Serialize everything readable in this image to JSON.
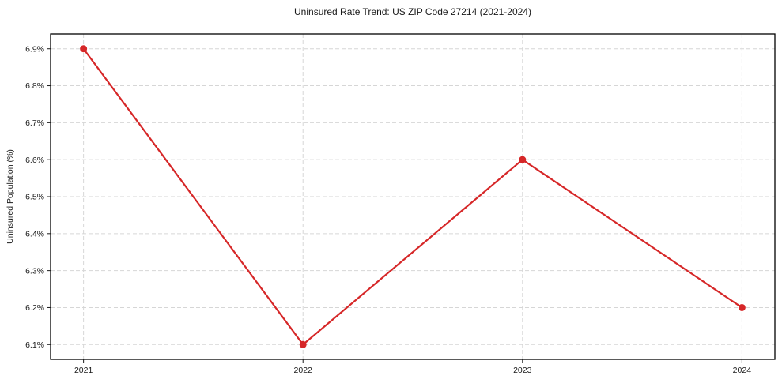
{
  "chart_data": {
    "type": "line",
    "title": "Uninsured Rate Trend: US ZIP Code 27214 (2021-2024)",
    "xlabel": "",
    "ylabel": "Uninsured Population (%)",
    "x": [
      2021,
      2022,
      2023,
      2024
    ],
    "values": [
      6.9,
      6.1,
      6.6,
      6.2
    ],
    "xtick_labels": [
      "2021",
      "2022",
      "2023",
      "2024"
    ],
    "yticks": [
      6.1,
      6.2,
      6.3,
      6.4,
      6.5,
      6.6,
      6.7,
      6.8,
      6.9
    ],
    "ytick_labels": [
      "6.1%",
      "6.2%",
      "6.3%",
      "6.4%",
      "6.5%",
      "6.6%",
      "6.7%",
      "6.8%",
      "6.9%"
    ],
    "xlim": [
      2020.85,
      2024.15
    ],
    "ylim": [
      6.06,
      6.94
    ],
    "grid": true,
    "legend_position": "none",
    "line_color": "#d62728",
    "marker": "circle",
    "background_color": "#ffffff"
  }
}
